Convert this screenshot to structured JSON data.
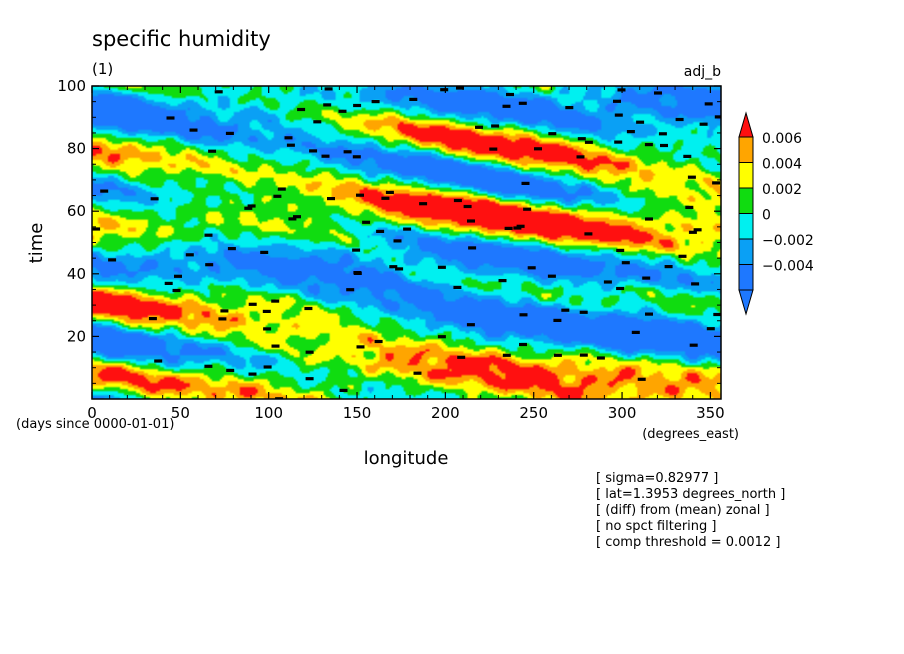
{
  "chart_data": {
    "type": "heatmap",
    "title": "specific humidity",
    "subtitle": "(1)",
    "top_right_label": "adj_b",
    "xlabel": "longitude",
    "ylabel": "time",
    "x_unit": "(degrees_east)",
    "y_unit": "(days since 0000-01-01)",
    "xlim": [
      0,
      356
    ],
    "ylim": [
      0,
      100
    ],
    "x_ticks": [
      0,
      50,
      100,
      150,
      200,
      250,
      300,
      350
    ],
    "y_ticks": [
      20,
      40,
      60,
      80,
      100
    ],
    "colorbar": {
      "labels": [
        "0.006",
        "0.004",
        "0.002",
        "0",
        "−0.002",
        "−0.004"
      ],
      "levels": [
        -0.006,
        -0.004,
        -0.002,
        0,
        0.002,
        0.004,
        0.006
      ],
      "colors": [
        "#1e78ff",
        "#0aa0f5",
        "#00f0f0",
        "#10dc10",
        "#ffff00",
        "#ffa500"
      ],
      "over_color": "#ff1010",
      "under_color": "#1e78ff"
    },
    "pattern_note": "band structure tilted downward toward increasing longitude",
    "threshold_marker_color": "#000000"
  },
  "info": {
    "lines": [
      "[ sigma=0.82977 ]",
      "[ lat=1.3953 degrees_north ]",
      "[ (diff) from (mean) zonal ]",
      "[ no spct filtering ]",
      "[ comp threshold = 0.0012 ]"
    ]
  }
}
